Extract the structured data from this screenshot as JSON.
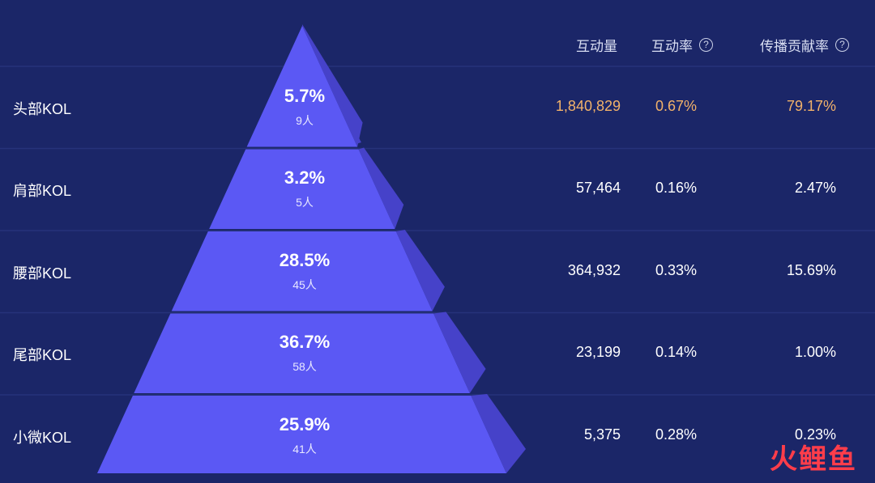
{
  "columns": {
    "interactions": "互动量",
    "interaction_rate": "互动率",
    "contribution_rate": "传播贡献率",
    "help_glyph": "?"
  },
  "chart_data": {
    "type": "table",
    "tiers": [
      {
        "name": "头部KOL",
        "share": "5.7%",
        "count": "9人",
        "interactions": "1,840,829",
        "interaction_rate": "0.67%",
        "contribution_rate": "79.17%",
        "highlight": true
      },
      {
        "name": "肩部KOL",
        "share": "3.2%",
        "count": "5人",
        "interactions": "57,464",
        "interaction_rate": "0.16%",
        "contribution_rate": "2.47%",
        "highlight": false
      },
      {
        "name": "腰部KOL",
        "share": "28.5%",
        "count": "45人",
        "interactions": "364,932",
        "interaction_rate": "0.33%",
        "contribution_rate": "15.69%",
        "highlight": false
      },
      {
        "name": "尾部KOL",
        "share": "36.7%",
        "count": "58人",
        "interactions": "23,199",
        "interaction_rate": "0.14%",
        "contribution_rate": "1.00%",
        "highlight": false
      },
      {
        "name": "小微KOL",
        "share": "25.9%",
        "count": "41人",
        "interactions": "5,375",
        "interaction_rate": "0.28%",
        "contribution_rate": "0.23%",
        "highlight": false
      }
    ]
  },
  "watermark": "火鲤鱼",
  "colors": {
    "background": "#1b2668",
    "row_line": "#26327a",
    "pyramid_front": "#5b58f4",
    "pyramid_side": "#4642c9",
    "gap_line": "#1f2360",
    "highlight_text": "#f2b26a",
    "watermark": "#ff3d4a"
  }
}
